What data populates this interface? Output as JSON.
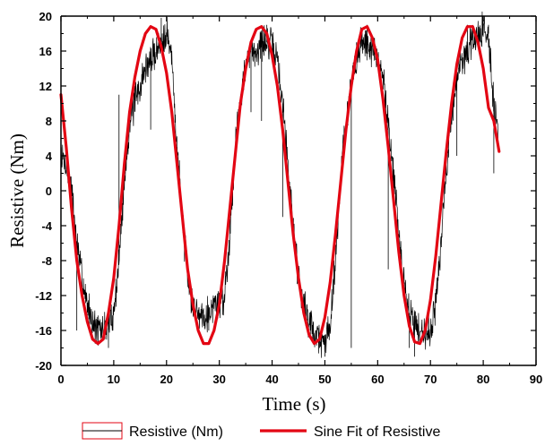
{
  "chart_data": {
    "type": "line",
    "title": "",
    "xlabel": "Time (s)",
    "ylabel": "Resistive (Nm)",
    "xlim": [
      0,
      90
    ],
    "ylim": [
      -20,
      20
    ],
    "xticks": [
      0,
      10,
      20,
      30,
      40,
      50,
      60,
      70,
      80,
      90
    ],
    "yticks": [
      -20,
      -16,
      -12,
      -8,
      -4,
      0,
      4,
      8,
      12,
      16,
      20
    ],
    "grid": false,
    "legend_position": "bottom",
    "series": [
      {
        "name": "Resistive (Nm)",
        "color": "#000000",
        "style": "noisy-line",
        "x": [
          0,
          1,
          2,
          3,
          4,
          5,
          6,
          7,
          8,
          9,
          10,
          11,
          12,
          13,
          14,
          15,
          16,
          17,
          18,
          19,
          20,
          21,
          22,
          23,
          24,
          25,
          26,
          27,
          28,
          29,
          30,
          31,
          32,
          33,
          34,
          35,
          36,
          37,
          38,
          39,
          40,
          41,
          42,
          43,
          44,
          45,
          46,
          47,
          48,
          49,
          50,
          51,
          52,
          53,
          54,
          55,
          56,
          57,
          58,
          59,
          60,
          61,
          62,
          63,
          64,
          65,
          66,
          67,
          68,
          69,
          70,
          71,
          72,
          73,
          74,
          75,
          76,
          77,
          78,
          79,
          80,
          81,
          82,
          83
        ],
        "y": [
          4,
          3,
          0,
          -6,
          -10,
          -13,
          -15,
          -16,
          -16,
          -15,
          -14,
          -8,
          1,
          8,
          10,
          12,
          14,
          15,
          16,
          17,
          18.5,
          15,
          5,
          -3,
          -10,
          -13,
          -14,
          -14,
          -14,
          -13,
          -13,
          -12,
          -5,
          5,
          11,
          14,
          16,
          16,
          17,
          17,
          16.5,
          15,
          10,
          3,
          -4,
          -10,
          -13,
          -15,
          -16,
          -17,
          -17.5,
          -15,
          -8,
          2,
          8,
          12,
          15,
          17,
          17,
          16,
          15,
          13,
          8,
          2,
          -5,
          -11,
          -14,
          -15,
          -16,
          -16,
          -16,
          -13,
          -6,
          2,
          9,
          13,
          15,
          16,
          17,
          18,
          18.5,
          18,
          10,
          5
        ],
        "spikes": [
          [
            3,
            -16
          ],
          [
            9,
            -18
          ],
          [
            11,
            11
          ],
          [
            14,
            12
          ],
          [
            17,
            7
          ],
          [
            19,
            19.8
          ],
          [
            22,
            3
          ],
          [
            28,
            -16
          ],
          [
            36,
            9
          ],
          [
            38,
            8
          ],
          [
            39,
            19
          ],
          [
            42,
            -3
          ],
          [
            49,
            -18
          ],
          [
            50,
            -19
          ],
          [
            55,
            -18
          ],
          [
            56,
            17
          ],
          [
            58,
            19
          ],
          [
            62,
            -9
          ],
          [
            66,
            -18
          ],
          [
            67,
            -19
          ],
          [
            70,
            -16
          ],
          [
            75,
            4
          ],
          [
            77,
            19
          ],
          [
            81,
            19
          ],
          [
            82,
            2
          ]
        ]
      },
      {
        "name": "Sine Fit of Resistive",
        "color": "#e30613",
        "style": "line",
        "x": [
          0,
          1,
          2,
          3,
          4,
          5,
          6,
          7,
          8,
          9,
          10,
          11,
          12,
          13,
          14,
          15,
          16,
          17,
          18,
          19,
          20,
          21,
          22,
          23,
          24,
          25,
          26,
          27,
          28,
          29,
          30,
          31,
          32,
          33,
          34,
          35,
          36,
          37,
          38,
          39,
          40,
          41,
          42,
          43,
          44,
          45,
          46,
          47,
          48,
          49,
          50,
          51,
          52,
          53,
          54,
          55,
          56,
          57,
          58,
          59,
          60,
          61,
          62,
          63,
          64,
          65,
          66,
          67,
          68,
          69,
          70,
          71,
          72,
          73,
          74,
          75,
          76,
          77,
          78,
          79,
          80,
          81,
          82,
          83
        ],
        "y": [
          11,
          5,
          -2,
          -8,
          -12,
          -15,
          -17,
          -17.5,
          -17,
          -14,
          -10,
          -4,
          3,
          9,
          13,
          16,
          18,
          18.8,
          18.5,
          16.5,
          13.5,
          9,
          3,
          -3,
          -9,
          -13,
          -16,
          -17.5,
          -17.5,
          -16,
          -13,
          -8,
          -2,
          4,
          10,
          14,
          17,
          18.5,
          18.8,
          18,
          15.5,
          12,
          7,
          1,
          -5,
          -10,
          -14,
          -16.5,
          -17.5,
          -17,
          -14.5,
          -10.5,
          -5,
          1,
          7,
          12,
          16,
          18.5,
          18.8,
          17.5,
          15,
          10.5,
          5,
          -1,
          -7,
          -12,
          -15.5,
          -17.3,
          -17.5,
          -16,
          -12.5,
          -7.5,
          -1.5,
          4.5,
          10,
          14.5,
          17.5,
          18.8,
          18.8,
          17,
          14,
          9.5,
          8,
          4.5
        ]
      }
    ]
  }
}
